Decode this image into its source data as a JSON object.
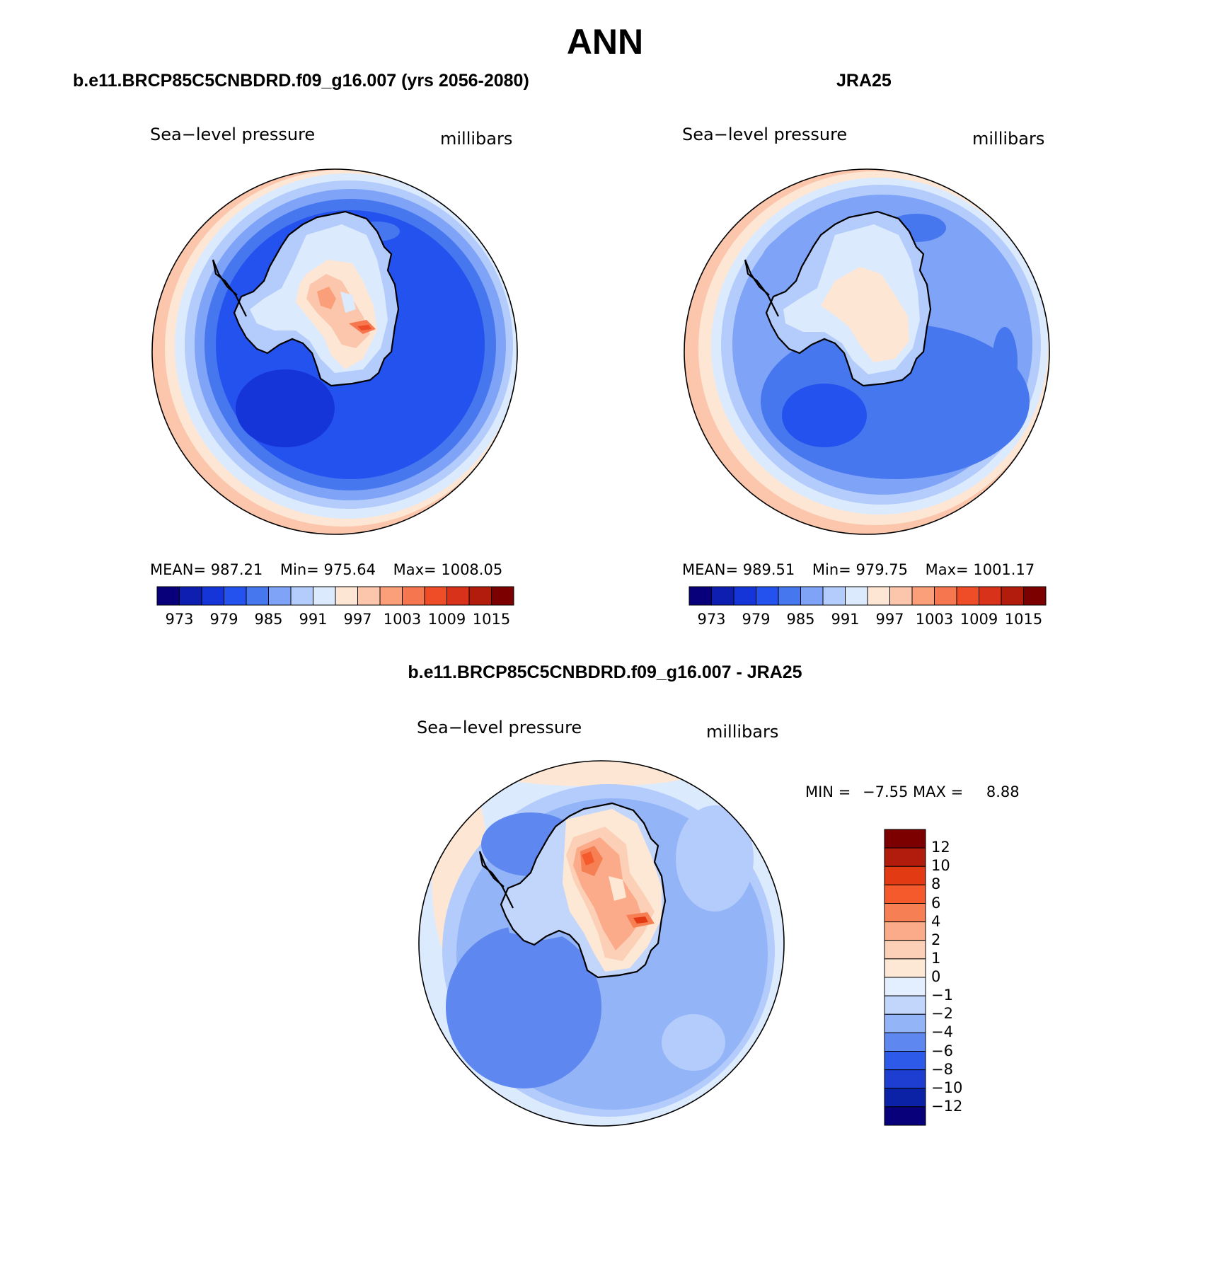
{
  "title": "ANN",
  "panels": [
    {
      "title": "b.e11.BRCP85C5CNBDRD.f09_g16.007 (yrs 2056-2080)",
      "left_label": "Sea−level pressure",
      "right_label": "millibars",
      "stats": {
        "mean_label": "MEAN=",
        "mean": "987.21",
        "min_label": "Min=",
        "min": "975.64",
        "max_label": "Max=",
        "max": "1008.05"
      }
    },
    {
      "title": "JRA25",
      "left_label": "Sea−level pressure",
      "right_label": "millibars",
      "stats": {
        "mean_label": "MEAN=",
        "mean": "989.51",
        "min_label": "Min=",
        "min": "979.75",
        "max_label": "Max=",
        "max": "1001.17"
      }
    },
    {
      "title": "b.e11.BRCP85C5CNBDRD.f09_g16.007 - JRA25",
      "left_label": "Sea−level pressure",
      "right_label": "millibars",
      "minmax": {
        "min_label": "MIN =",
        "min": "−7.55",
        "max_label": "MAX =",
        "max": "8.88"
      }
    }
  ],
  "colorbar_abs": {
    "colors": [
      "#08007a",
      "#0d1eb0",
      "#1635d8",
      "#2452ee",
      "#4677ee",
      "#7ea3f7",
      "#b4ccfb",
      "#dceafe",
      "#fde6d4",
      "#fcc6ac",
      "#fb9f7a",
      "#f6774f",
      "#ee4d27",
      "#d8321a",
      "#b21c0d",
      "#7d0000"
    ],
    "labels": [
      "973",
      "979",
      "985",
      "991",
      "997",
      "1003",
      "1009",
      "1015"
    ]
  },
  "colorbar_diff": {
    "colors_top_to_bottom": [
      "#7d0000",
      "#b21c0d",
      "#e23a12",
      "#f45a2c",
      "#f77f54",
      "#fbab89",
      "#fcd0b6",
      "#fde8d6",
      "#e3eefe",
      "#c2d6fc",
      "#94b4f8",
      "#5e87ef",
      "#2d5ae9",
      "#1e3ed2",
      "#0b22a6",
      "#08007a"
    ],
    "labels_top_to_bottom": [
      "12",
      "10",
      "8",
      "6",
      "4",
      "2",
      "1",
      "0",
      "−1",
      "−2",
      "−4",
      "−6",
      "−8",
      "−10",
      "−12"
    ]
  },
  "map_colors": {
    "ocean_deep": "#2452ee",
    "ocean_mid": "#4677ee",
    "ocean_light": "#7ea3f7",
    "ocean_pale": "#b4ccfb",
    "near_zero": "#dceafe",
    "warm_pale": "#fde6d4",
    "warm_light": "#fcc6ac",
    "warm_mid": "#fb9f7a",
    "warm_strong": "#ee4d27",
    "coast": "#000000"
  }
}
